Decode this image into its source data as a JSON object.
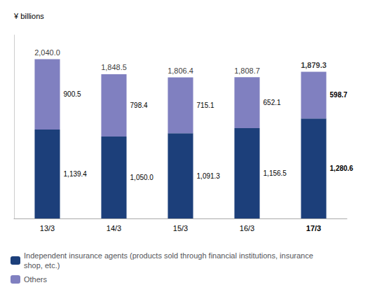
{
  "chart_data": {
    "type": "bar",
    "stacked": true,
    "categories": [
      "13/3",
      "14/3",
      "15/3",
      "16/3",
      "17/3"
    ],
    "series": [
      {
        "name": "Independent insurance agents (products sold through financial institutions, insurance\nshop, etc.)",
        "color": "#1c3f7a",
        "values": [
          1139.4,
          1050.0,
          1091.3,
          1156.5,
          1280.6
        ],
        "value_labels": [
          "1,139.4",
          "1,050.0",
          "1,091.3",
          "1,156.5",
          "1,280.6"
        ]
      },
      {
        "name": "Others",
        "color": "#8080c0",
        "values": [
          900.5,
          798.4,
          715.1,
          652.1,
          598.7
        ],
        "value_labels": [
          "900.5",
          "798.4",
          "715.1",
          "652.1",
          "598.7"
        ]
      }
    ],
    "totals": [
      2040.0,
      1848.5,
      1806.4,
      1808.7,
      1879.3
    ],
    "total_labels": [
      "2,040.0",
      "1,848.5",
      "1,806.4",
      "1,808.7",
      "1,879.3"
    ],
    "ylabel": "¥ billions",
    "ylim": [
      0,
      2350
    ],
    "tick_labels": "x",
    "grid": false,
    "data_labels": true,
    "legend": "lower left"
  }
}
